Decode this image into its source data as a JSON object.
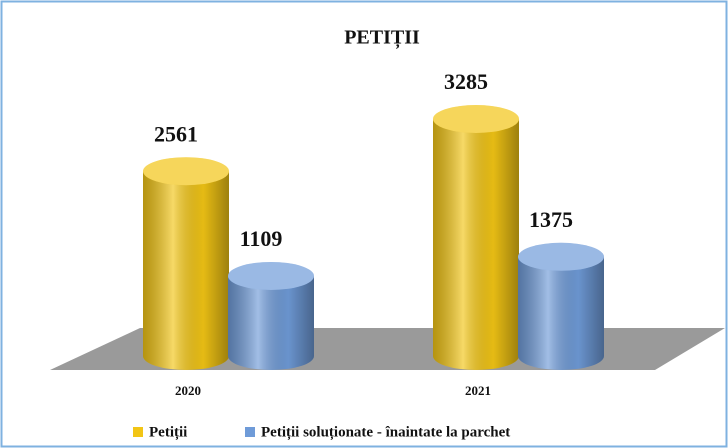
{
  "chart_data": {
    "type": "bar3d",
    "title": "PETIȚII",
    "categories": [
      "2020",
      "2021"
    ],
    "series": [
      {
        "name": "Petiții",
        "color": "#f2c515",
        "values": [
          2561,
          3285
        ]
      },
      {
        "name": "Petiții soluționate - înaintate la parchet",
        "color": "#6f9bd8",
        "values": [
          1109,
          1375
        ]
      }
    ]
  }
}
